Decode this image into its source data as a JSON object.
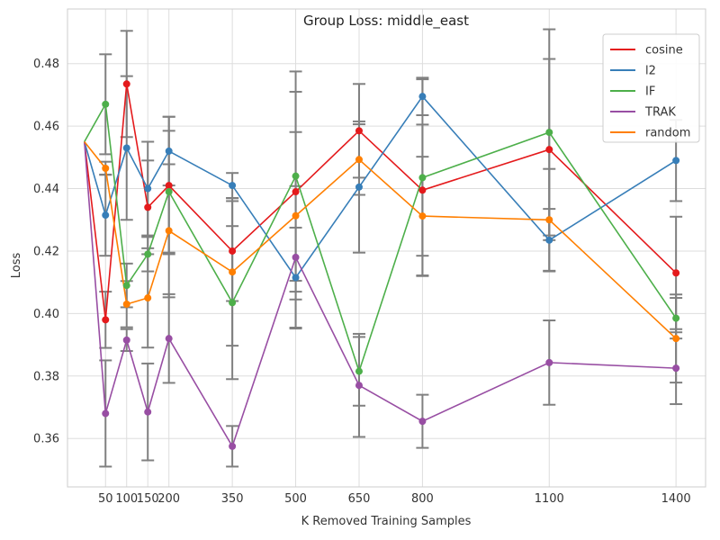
{
  "chart_data": {
    "type": "line",
    "title": "Group Loss: middle_east",
    "xlabel": "K Removed Training Samples",
    "ylabel": "Loss",
    "x_ticks": [
      50,
      100,
      150,
      200,
      350,
      500,
      650,
      800,
      1100,
      1400
    ],
    "y_ticks": [
      0.36,
      0.38,
      0.4,
      0.42,
      0.44,
      0.46,
      0.48
    ],
    "xlim": [
      -40,
      1470
    ],
    "ylim": [
      0.3445,
      0.4975
    ],
    "grid": true,
    "legend_position": "top-right",
    "baseline_x": 0,
    "baseline_value": 0.455,
    "series": [
      {
        "name": "cosine",
        "color": "#e41a1c",
        "x": [
          50,
          100,
          150,
          200,
          350,
          500,
          650,
          800,
          1100,
          1400
        ],
        "y": [
          0.398,
          0.4735,
          0.434,
          0.441,
          0.42,
          0.439,
          0.4585,
          0.4395,
          0.4525,
          0.413
        ],
        "err": [
          0.009,
          0.017,
          0.015,
          0.022,
          0.016,
          0.032,
          0.015,
          0.021,
          0.029,
          0.018
        ]
      },
      {
        "name": "l2",
        "color": "#377eb8",
        "x": [
          50,
          100,
          150,
          200,
          350,
          500,
          650,
          800,
          1100,
          1400
        ],
        "y": [
          0.4315,
          0.453,
          0.44,
          0.452,
          0.441,
          0.4115,
          0.4405,
          0.4695,
          0.4235,
          0.449
        ],
        "err": [
          0.013,
          0.023,
          0.015,
          0.011,
          0.004,
          0.016,
          0.021,
          0.006,
          0.01,
          0.013
        ]
      },
      {
        "name": "IF",
        "color": "#4daf4a",
        "x": [
          50,
          100,
          150,
          200,
          350,
          500,
          650,
          800,
          1100,
          1400
        ],
        "y": [
          0.467,
          0.409,
          0.419,
          0.439,
          0.4035,
          0.444,
          0.3815,
          0.4435,
          0.458,
          0.3985
        ],
        "err": [
          0.016,
          0.007,
          0.0055,
          0.0195,
          0.0245,
          0.0335,
          0.011,
          0.0315,
          0.033,
          0.0065
        ]
      },
      {
        "name": "TRAK",
        "color": "#984ea3",
        "x": [
          50,
          100,
          150,
          200,
          350,
          500,
          650,
          800,
          1100,
          1400
        ],
        "y": [
          0.368,
          0.3915,
          0.3685,
          0.392,
          0.3575,
          0.418,
          0.377,
          0.3655,
          0.3843,
          0.3825
        ],
        "err": [
          0.017,
          0.0035,
          0.0155,
          0.0142,
          0.0065,
          0.0228,
          0.0165,
          0.0085,
          0.0135,
          0.0115
        ]
      },
      {
        "name": "random",
        "color": "#ff7f00",
        "x": [
          50,
          100,
          150,
          200,
          350,
          500,
          650,
          800,
          1100,
          1400
        ],
        "y": [
          0.4465,
          0.403,
          0.405,
          0.4265,
          0.4133,
          0.4313,
          0.4493,
          0.4312,
          0.43,
          0.392
        ],
        "err": [
          0.0021,
          0.0074,
          0.0159,
          0.0213,
          0.0236,
          0.0268,
          0.0113,
          0.019,
          0.0163,
          0.0141
        ]
      }
    ]
  }
}
